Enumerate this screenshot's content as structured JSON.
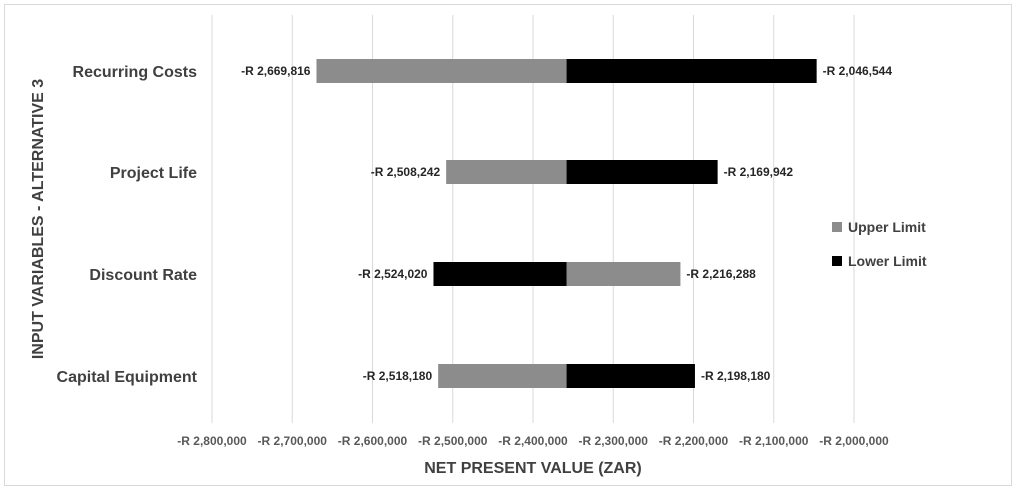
{
  "chart_data": {
    "type": "bar",
    "orientation": "horizontal",
    "subtype": "tornado",
    "xlabel": "NET PRESENT VALUE (ZAR)",
    "ylabel": "INPUT VARIABLES - ALTERNATIVE 3",
    "xlim": [
      -2800000,
      -2000000
    ],
    "x_ticks": [
      -2800000,
      -2700000,
      -2600000,
      -2500000,
      -2400000,
      -2300000,
      -2200000,
      -2100000,
      -2000000
    ],
    "x_tick_labels": [
      "-R 2,800,000",
      "-R 2,700,000",
      "-R 2,600,000",
      "-R 2,500,000",
      "-R 2,400,000",
      "-R 2,300,000",
      "-R 2,200,000",
      "-R 2,100,000",
      "-R 2,000,000"
    ],
    "base_value": -2358180,
    "grid": true,
    "legend_position": "right",
    "colors": {
      "Upper Limit": "#8c8c8c",
      "Lower Limit": "#000000"
    },
    "categories": [
      "Recurring Costs",
      "Project Life",
      "Discount Rate",
      "Capital Equipment"
    ],
    "series": [
      {
        "name": "Upper Limit",
        "values": [
          -2669816,
          -2508242,
          -2216288,
          -2518180
        ],
        "labels": [
          "-R 2,669,816",
          "-R 2,508,242",
          "-R 2,216,288",
          "-R 2,518,180"
        ]
      },
      {
        "name": "Lower Limit",
        "values": [
          -2046544,
          -2169942,
          -2524020,
          -2198180
        ],
        "labels": [
          "-R 2,046,544",
          "-R 2,169,942",
          "-R 2,524,020",
          "-R 2,198,180"
        ]
      }
    ]
  }
}
